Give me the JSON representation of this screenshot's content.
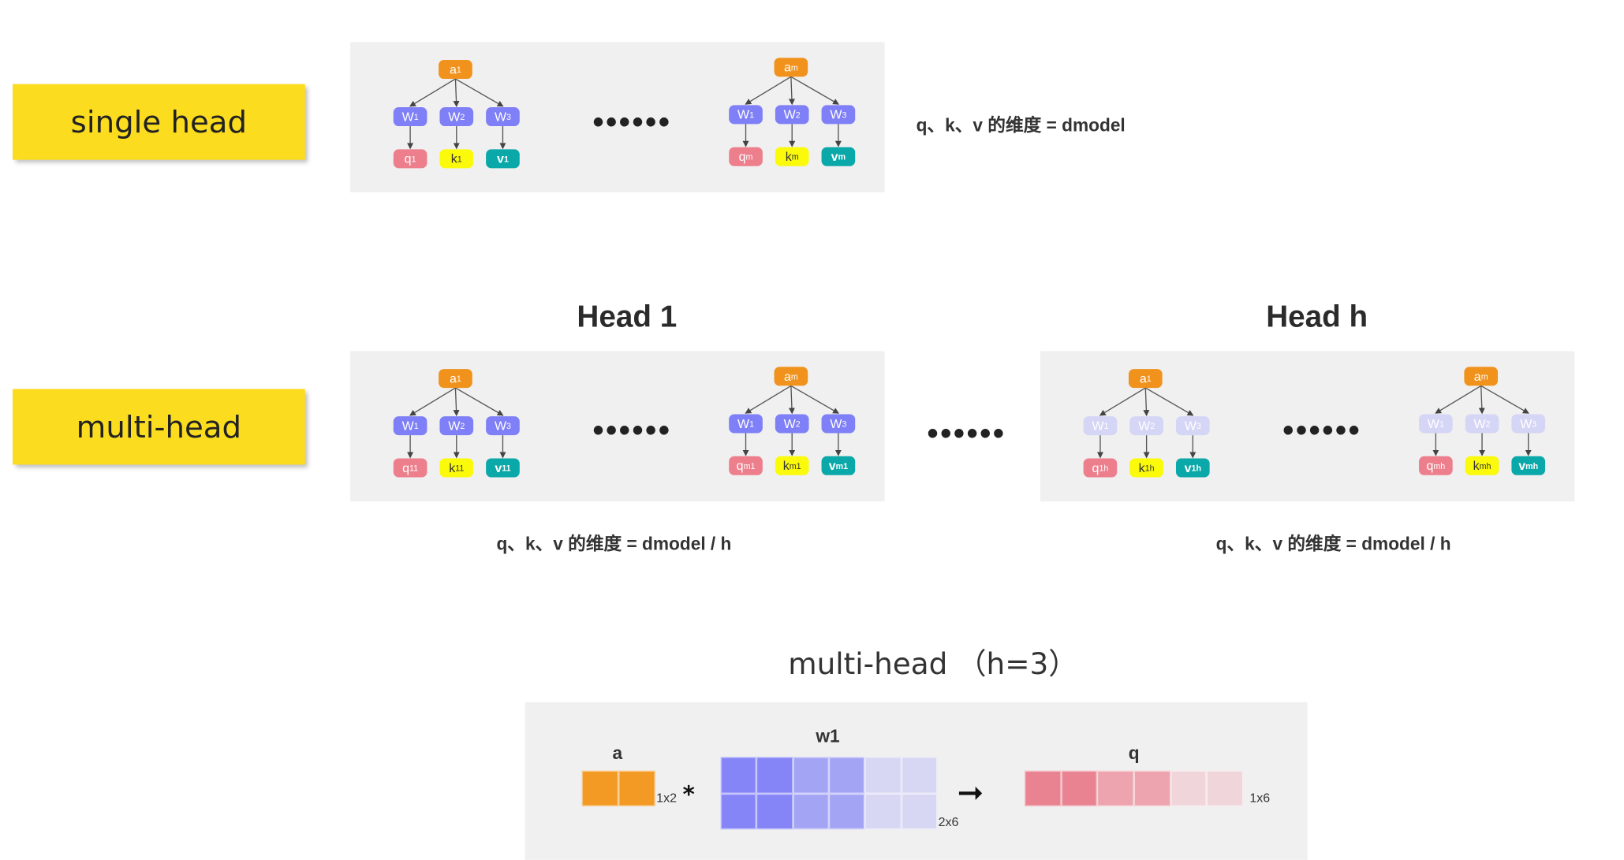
{
  "labels": {
    "single": "single head",
    "multi": "multi-head"
  },
  "heads": {
    "head1": "Head 1",
    "headh": "Head h"
  },
  "ellipsis": "••••••",
  "notes": {
    "single": "q、k、v 的维度 = dmodel",
    "multi1": "q、k、v 的维度 = dmodel / h",
    "multih": "q、k、v 的维度 = dmodel / h"
  },
  "matrix_section": {
    "title": "multi-head （h=3）",
    "a_label": "a",
    "w_label": "w1",
    "q_label": "q",
    "a_dim": "1x2",
    "w_dim": "2x6",
    "q_dim": "1x6",
    "times": "*",
    "arrow": "➞"
  },
  "trees": [
    {
      "id": "single-1",
      "faded": false,
      "nodes": [
        "a1",
        "W1",
        "W2",
        "W3",
        "q1",
        "k1",
        "v1"
      ]
    },
    {
      "id": "single-m",
      "faded": false,
      "nodes": [
        "am",
        "W1",
        "W2",
        "W3",
        "qm",
        "km",
        "vm"
      ]
    },
    {
      "id": "head1-1",
      "faded": false,
      "nodes": [
        "a1",
        "W1",
        "W2",
        "W3",
        "q11",
        "k11",
        "v11"
      ]
    },
    {
      "id": "head1-m",
      "faded": false,
      "nodes": [
        "am",
        "W1",
        "W2",
        "W3",
        "qm1",
        "km1",
        "vm1"
      ]
    },
    {
      "id": "headh-1",
      "faded": true,
      "nodes": [
        "a1",
        "W1",
        "W2",
        "W3",
        "q1h",
        "k1h",
        "v1h"
      ]
    },
    {
      "id": "headh-m",
      "faded": true,
      "nodes": [
        "am",
        "W1",
        "W2",
        "W3",
        "qmh",
        "kmh",
        "vmh"
      ]
    }
  ],
  "colors": {
    "label_bg": "#fcdc1e",
    "panel_bg": "#f0f0f0",
    "a": "#f0921c",
    "w": "#7f7ff7",
    "w_faded": "#d5d5f6",
    "q": "#ed7f8c",
    "k": "#fafa0a",
    "v": "#0aa8a8",
    "a_matrix": "#f39a24",
    "w_matrix": [
      "#8585f7",
      "#8585f7",
      "#a4a4f5",
      "#a4a4f5",
      "#d7d7f4",
      "#d7d7f4"
    ],
    "q_matrix": [
      "#e98391",
      "#e98391",
      "#eda4ae",
      "#eda4ae",
      "#f0d6da",
      "#f0d6da"
    ]
  }
}
